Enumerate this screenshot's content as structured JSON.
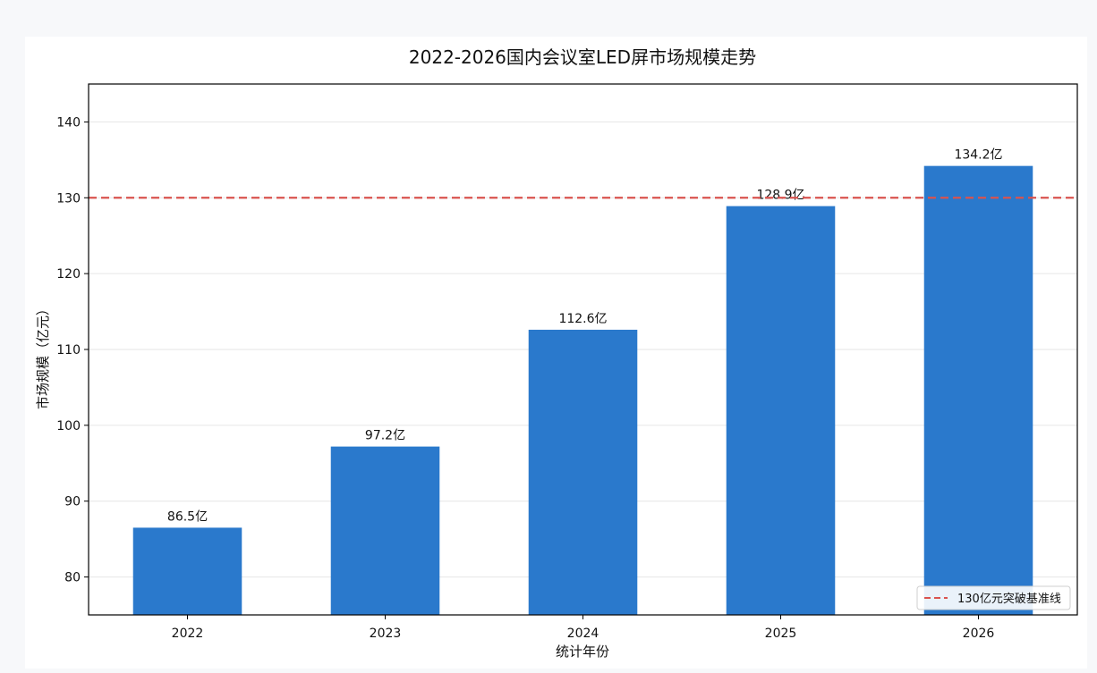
{
  "chart_data": {
    "type": "bar",
    "title": "2022-2026国内会议室LED屏市场规模走势",
    "xlabel": "统计年份",
    "ylabel": "市场规模（亿元）",
    "categories": [
      "2022",
      "2023",
      "2024",
      "2025",
      "2026"
    ],
    "values": [
      86.5,
      97.2,
      112.6,
      128.9,
      134.2
    ],
    "data_labels": [
      "86.5亿",
      "97.2亿",
      "112.6亿",
      "128.9亿",
      "134.2亿"
    ],
    "ylim": [
      75,
      145
    ],
    "yticks": [
      80,
      90,
      100,
      110,
      120,
      130,
      140
    ],
    "grid": "horizontal",
    "bar_color": "#2a79cc",
    "reference_line": {
      "value": 130,
      "label": "130亿元突破基准线",
      "color": "#d9534f",
      "style": "dashed"
    },
    "legend_position": "bottom-right"
  }
}
